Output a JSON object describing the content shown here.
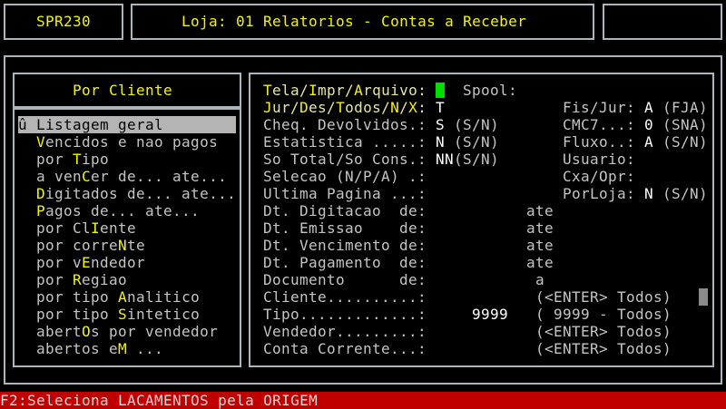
{
  "header": {
    "program": "SPR230",
    "title": "Loja: 01 Relatorios - Contas a Receber"
  },
  "menu": {
    "title": "Por Cliente",
    "selected_index": 0,
    "items": [
      {
        "pre": "û Listagem geral",
        "key": "",
        "post": ""
      },
      {
        "pre": "",
        "key": "V",
        "post": "encidos e nao pagos"
      },
      {
        "pre": "por ",
        "key": "T",
        "post": "ipo"
      },
      {
        "pre": "a ven",
        "key": "C",
        "post": "er de... ate..."
      },
      {
        "pre": "",
        "key": "D",
        "post": "igitados de... ate..."
      },
      {
        "pre": "",
        "key": "P",
        "post": "agos de... ate..."
      },
      {
        "pre": "por Cl",
        "key": "I",
        "post": "ente"
      },
      {
        "pre": "por corre",
        "key": "N",
        "post": "te"
      },
      {
        "pre": "por v",
        "key": "E",
        "post": "ndedor"
      },
      {
        "pre": "por ",
        "key": "R",
        "post": "egiao"
      },
      {
        "pre": "por tipo ",
        "key": "A",
        "post": "nalitico"
      },
      {
        "pre": "por tipo ",
        "key": "S",
        "post": "intetico"
      },
      {
        "pre": "abert",
        "key": "O",
        "post": "s por vendedor"
      },
      {
        "pre": "abertos e",
        "key": "M",
        "post": " ..."
      }
    ]
  },
  "form": {
    "output": {
      "segments": [
        "T",
        "ela/",
        "I",
        "mpr/",
        "A",
        "rquivo:"
      ],
      "spool_label": "Spool:"
    },
    "jur": {
      "segments": [
        "J",
        "ur/",
        "D",
        "es/",
        "T",
        "odos/",
        "N",
        "/",
        "X",
        ":"
      ],
      "value": "T"
    },
    "cheq": {
      "label": "Cheq. Devolvidos.:",
      "value": "S",
      "hint": "(S/N)"
    },
    "estat": {
      "label": "Estatistica .....:",
      "value": "N",
      "hint": "(S/N)"
    },
    "sototal": {
      "label": "So Total/So Cons.:",
      "value": "NN",
      "hint": "(S/N)"
    },
    "selecao": {
      "label": "Selecao (N/P/A) .:"
    },
    "ultima": {
      "label": "Ultima Pagina ...:"
    },
    "dt_digitacao": {
      "label": "Dt. Digitacao  de:",
      "to": "ate"
    },
    "dt_emissao": {
      "label": "Dt. Emissao    de:",
      "to": "ate"
    },
    "dt_vencimento": {
      "label": "Dt. Vencimento de:",
      "to": "ate"
    },
    "dt_pagamento": {
      "label": "Dt. Pagamento  de:",
      "to": "ate"
    },
    "documento": {
      "label": "Documento      de:",
      "to": "a"
    },
    "cliente": {
      "label": "Cliente..........:",
      "hint": "(<ENTER> Todos)"
    },
    "tipo": {
      "label": "Tipo.............:",
      "value": "9999",
      "hint": "( 9999 - Todos)"
    },
    "vendedor": {
      "label": "Vendedor.........:",
      "hint": "(<ENTER> Todos)"
    },
    "conta": {
      "label": "Conta Corrente...:",
      "hint": "(<ENTER> Todos)"
    },
    "fisjur": {
      "label": "Fis/Jur:",
      "value": "A",
      "hint": "(FJA)"
    },
    "cmc7": {
      "label": "CMC7...:",
      "value": "0",
      "hint": "(SNA)"
    },
    "fluxo": {
      "label": "Fluxo..:",
      "value": "A",
      "hint": "(S/N)"
    },
    "usuario": {
      "label": "Usuario:"
    },
    "cxaopr": {
      "label": "Cxa/Opr:"
    },
    "porloja": {
      "label": "PorLoja:",
      "value": "N",
      "hint": "(S/N)"
    }
  },
  "status_bar": {
    "text": "F2:Seleciona LACAMENTOS pela ORIGEM"
  },
  "colors": {
    "background": "#000000",
    "text": "#c4c4c4",
    "hotkey": "#f4f400",
    "cursor": "#00e000",
    "status_bar": "#c00000",
    "selection": "#b4b4b4"
  }
}
